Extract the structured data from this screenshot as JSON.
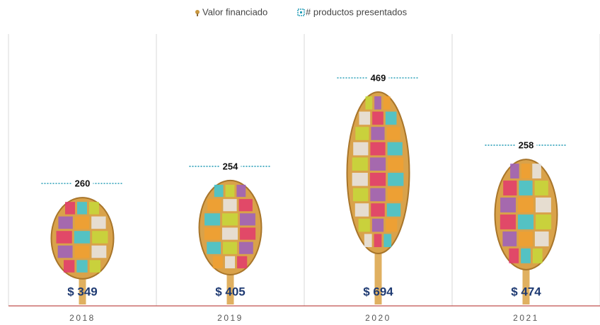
{
  "chart_data": {
    "type": "pictograph",
    "categories": [
      "2018",
      "2019",
      "2020",
      "2021"
    ],
    "series": [
      {
        "name": "Valor financiado",
        "color": "#c8963e",
        "values": [
          349,
          405,
          694,
          474
        ],
        "value_labels": [
          "$ 349",
          "$ 405",
          "$ 694",
          "$ 474"
        ]
      },
      {
        "name": "# productos presentados",
        "color": "#2a9fb8",
        "values": [
          260,
          254,
          469,
          258
        ]
      }
    ]
  }
}
